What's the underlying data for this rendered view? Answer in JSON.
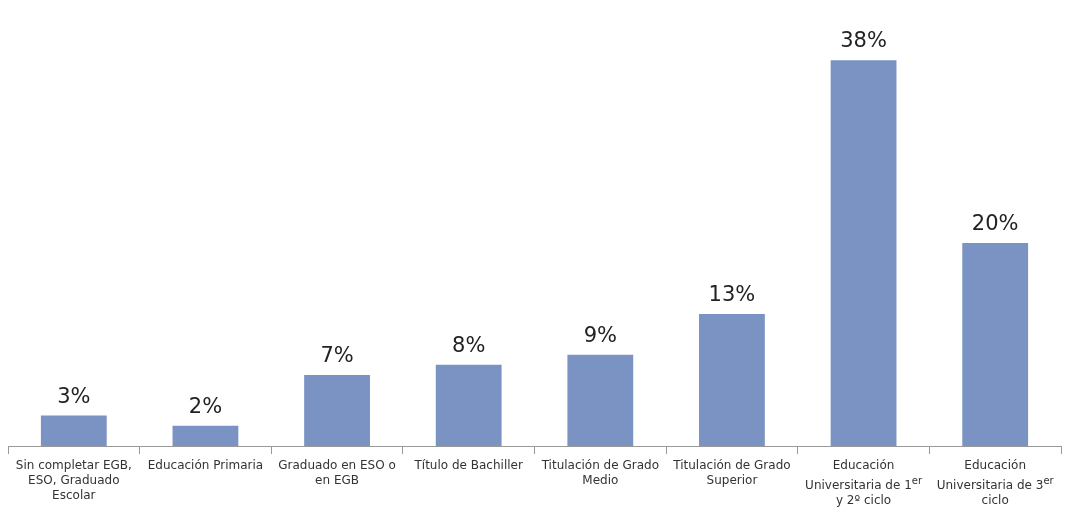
{
  "chart_data": {
    "type": "bar",
    "categories": [
      "Sin completar EGB, ESO, Graduado Escolar",
      "Educación Primaria",
      "Graduado en ESO o en EGB",
      "Título de Bachiller",
      "Titulación de Grado Medio",
      "Titulación de Grado Superior",
      "Educación Universitaria de 1$^{er}$ y 2º ciclo",
      "Educación Universitaria de 3$^{er}$ ciclo"
    ],
    "values": [
      3,
      2,
      7,
      8,
      9,
      13,
      38,
      20
    ],
    "value_labels": [
      "3%",
      "2%",
      "7%",
      "8%",
      "9%",
      "13%",
      "38%",
      "20%"
    ],
    "color": "#7b93c3",
    "tick_labels": "x",
    "grid": false,
    "legend": false
  }
}
